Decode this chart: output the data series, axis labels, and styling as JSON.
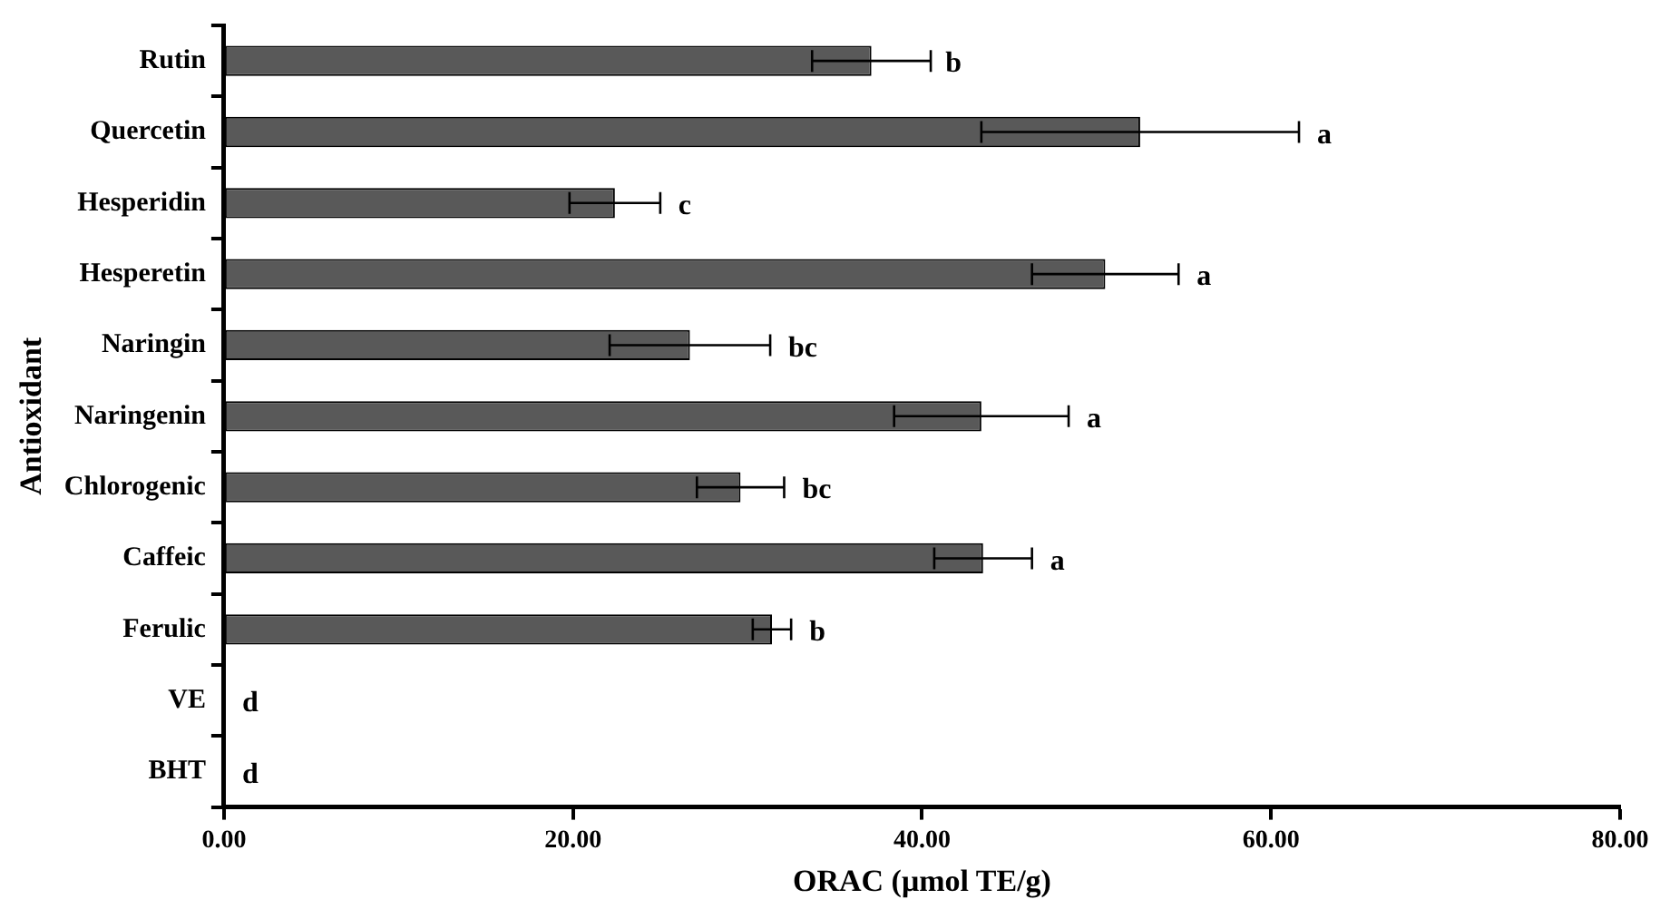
{
  "chart_data": {
    "type": "bar",
    "orientation": "horizontal",
    "xlabel": "ORAC (μmol TE/g)",
    "ylabel": "Antioxidant",
    "categories": [
      "Rutin",
      "Quercetin",
      "Hesperidin",
      "Hesperetin",
      "Naringin",
      "Naringenin",
      "Chlorogenic",
      "Caffeic",
      "Ferulic",
      "VE",
      "BHT"
    ],
    "values": [
      37.1,
      52.5,
      22.4,
      50.5,
      26.7,
      43.4,
      29.6,
      43.5,
      31.4,
      0,
      0
    ],
    "errors": [
      3.4,
      9.1,
      2.6,
      4.2,
      4.6,
      5.0,
      2.5,
      2.8,
      1.1,
      null,
      null
    ],
    "color": "#595959",
    "xlim": [
      0,
      80
    ],
    "xticks": [
      {
        "value": 0,
        "label": "0.00"
      },
      {
        "value": 20,
        "label": "20.00"
      },
      {
        "value": 40,
        "label": "40.00"
      },
      {
        "value": 60,
        "label": "60.00"
      },
      {
        "value": 80,
        "label": "80.00"
      }
    ],
    "grid": false,
    "legend": false,
    "annotations": [
      {
        "text": "b",
        "x": 40.3,
        "y": "Rutin"
      },
      {
        "text": "a",
        "x": 61.6,
        "y": "Quercetin"
      },
      {
        "text": "c",
        "x": 25.0,
        "y": "Hesperidin"
      },
      {
        "text": "a",
        "x": 54.7,
        "y": "Hesperetin"
      },
      {
        "text": "bc",
        "x": 31.3,
        "y": "Naringin"
      },
      {
        "text": "a",
        "x": 48.4,
        "y": "Naringenin"
      },
      {
        "text": "bc",
        "x": 32.1,
        "y": "Chlorogenic"
      },
      {
        "text": "a",
        "x": 46.3,
        "y": "Caffeic"
      },
      {
        "text": "b",
        "x": 32.5,
        "y": "Ferulic"
      },
      {
        "text": "d",
        "x": 0,
        "y": "VE"
      },
      {
        "text": "d",
        "x": 0,
        "y": "BHT"
      }
    ]
  }
}
